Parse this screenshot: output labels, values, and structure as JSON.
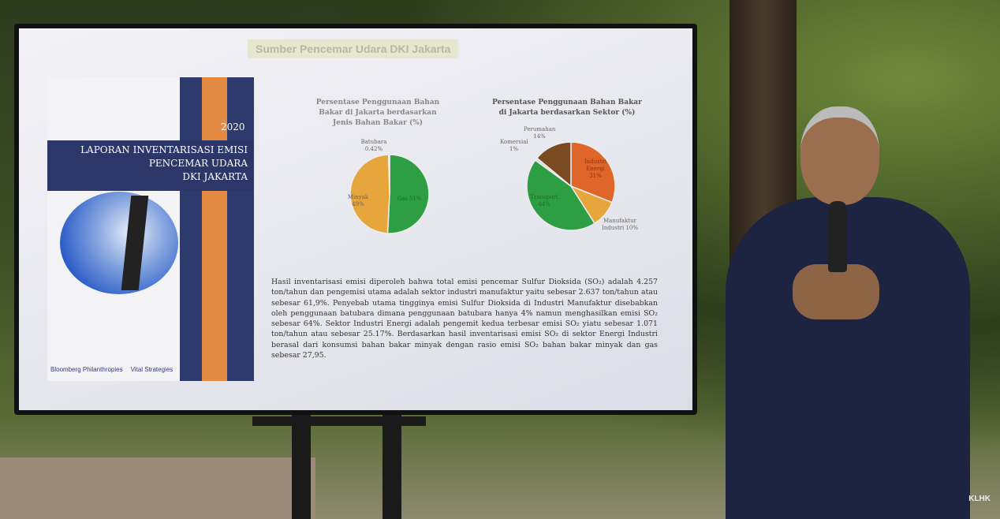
{
  "slide": {
    "title": "Sumber Pencemar Udara DKI Jakarta",
    "cover": {
      "year": "2020",
      "title_lines": [
        "LAPORAN INVENTARISASI EMISI",
        "PENCEMAR UDARA",
        "DKI JAKARTA"
      ],
      "logos": [
        "Bloomberg Philanthropies",
        "Vital Strategies"
      ]
    },
    "chart_left": {
      "type": "pie",
      "title": "Persentase Penggunaan Bahan Bakar di Jakarta berdasarkan Jenis Bahan Bakar (%)",
      "slices": [
        {
          "label": "Gas",
          "value": 51,
          "text": "Gas 51%",
          "color": "#2e9e44"
        },
        {
          "label": "Minyak",
          "value": 49,
          "text": "Minyak 49%",
          "color": "#e6a63c"
        },
        {
          "label": "Batubara",
          "value": 0.42,
          "text": "Batubara 0.42%",
          "color": "#e0e0e0"
        }
      ]
    },
    "chart_right": {
      "type": "pie",
      "title": "Persentase Penggunaan Bahan Bakar di Jakarta berdasarkan Sektor (%)",
      "slices": [
        {
          "label": "Industri Energi",
          "value": 31,
          "text": "Industri Energi 31%",
          "color": "#e0652a"
        },
        {
          "label": "Manufaktur Industri",
          "value": 10,
          "text": "Manufaktur Industri 10%",
          "color": "#e6a63c"
        },
        {
          "label": "Transport",
          "value": 44,
          "text": "Transport 44%",
          "color": "#2e9e44"
        },
        {
          "label": "Komersial",
          "value": 1,
          "text": "Komersial 1%",
          "color": "#d8d8d8"
        },
        {
          "label": "Perumahan",
          "value": 14,
          "text": "Perumahan 14%",
          "color": "#7a4a22"
        }
      ]
    },
    "paragraph": "Hasil inventarisasi emisi diperoleh bahwa total emisi pencemar Sulfur Dioksida (SO₂) adalah 4.257 ton/tahun dan pengemisi utama adalah sektor industri manufaktur yaitu sebesar 2.637 ton/tahun atau sebesar 61,9%. Penyebab utama tingginya emisi Sulfur Dioksida di Industri Manufaktur disebabkan oleh penggunaan batubara dimana penggunaan batubara hanya 4% namun menghasilkan emisi SO₂ sebesar 64%. Sektor Industri Energi adalah pengemit kedua terbesar emisi SO₂ yiatu sebesar 1.071 ton/tahun atau sebesar 25.17%. Berdasarkan hasil inventarisasi emisi SO₂ di sektor Energi Industri berasal dari konsumsi bahan bakar minyak dengan rasio emisi SO₂ bahan bakar minyak dan gas sebesar 27,95."
  },
  "watermark": "KLHK"
}
